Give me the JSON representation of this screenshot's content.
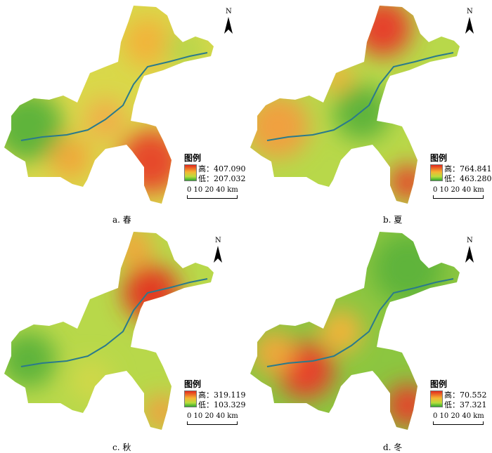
{
  "panels": [
    {
      "caption": "a. 春",
      "legend_title": "图例",
      "high": "高：407.090",
      "low": "低：207.032",
      "scale": "0 10 20   40 km"
    },
    {
      "caption": "b. 夏",
      "legend_title": "图例",
      "high": "高：764.841",
      "low": "低：463.280",
      "scale": "0 10 20   40 km"
    },
    {
      "caption": "c. 秋",
      "legend_title": "图例",
      "high": "高：319.119",
      "low": "低：103.329",
      "scale": "0 10 20   40 km"
    },
    {
      "caption": "d. 冬",
      "legend_title": "图例",
      "high": "高：70.552",
      "low": "低：37.321",
      "scale": "0 10 20   40 km"
    }
  ],
  "north_label": "N",
  "colors": {
    "high": "#e2281c",
    "mid": "#f6b533",
    "low": "#2fa82f",
    "river": "#2a7a8c"
  }
}
